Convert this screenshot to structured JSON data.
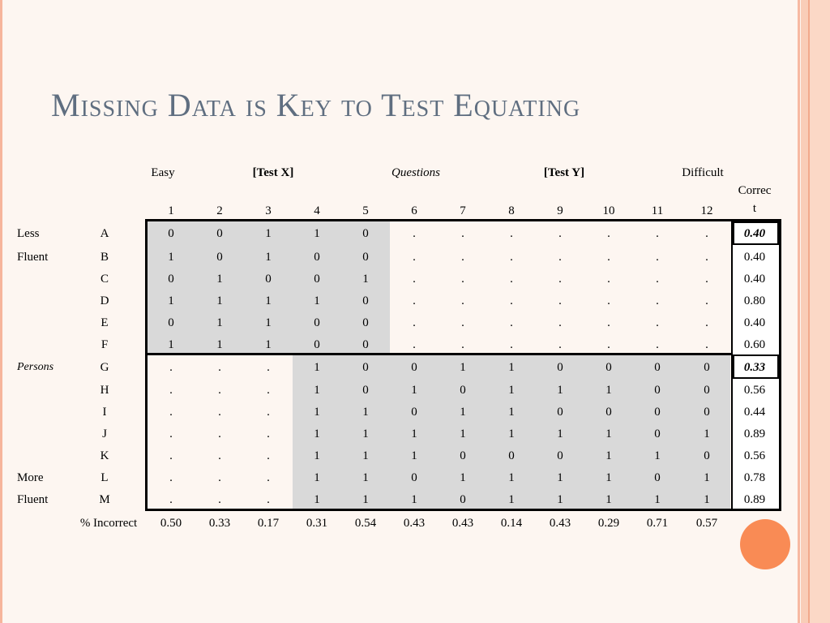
{
  "slide": {
    "title": "Missing Data is Key to Test Equating"
  },
  "header": {
    "easy": "Easy",
    "test_x": "[Test X]",
    "questions": "Questions",
    "test_y": "[Test Y]",
    "difficult": "Difficult",
    "correct_line1": "Correc",
    "correct_line2": "t"
  },
  "columns": [
    "1",
    "2",
    "3",
    "4",
    "5",
    "6",
    "7",
    "8",
    "9",
    "10",
    "11",
    "12"
  ],
  "side_labels": {
    "less": "Less",
    "fluent_top": "Fluent",
    "persons": "Persons",
    "more": "More",
    "fluent_bottom": "Fluent"
  },
  "rows": [
    {
      "id": "A",
      "cells": [
        "0",
        "0",
        "1",
        "1",
        "0",
        ".",
        ".",
        ".",
        ".",
        ".",
        ".",
        "."
      ],
      "correct": "0.40"
    },
    {
      "id": "B",
      "cells": [
        "1",
        "0",
        "1",
        "0",
        "0",
        ".",
        ".",
        ".",
        ".",
        ".",
        ".",
        "."
      ],
      "correct": "0.40"
    },
    {
      "id": "C",
      "cells": [
        "0",
        "1",
        "0",
        "0",
        "1",
        ".",
        ".",
        ".",
        ".",
        ".",
        ".",
        "."
      ],
      "correct": "0.40"
    },
    {
      "id": "D",
      "cells": [
        "1",
        "1",
        "1",
        "1",
        "0",
        ".",
        ".",
        ".",
        ".",
        ".",
        ".",
        "."
      ],
      "correct": "0.80"
    },
    {
      "id": "E",
      "cells": [
        "0",
        "1",
        "1",
        "0",
        "0",
        ".",
        ".",
        ".",
        ".",
        ".",
        ".",
        "."
      ],
      "correct": "0.40"
    },
    {
      "id": "F",
      "cells": [
        "1",
        "1",
        "1",
        "0",
        "0",
        ".",
        ".",
        ".",
        ".",
        ".",
        ".",
        "."
      ],
      "correct": "0.60"
    },
    {
      "id": "G",
      "cells": [
        ".",
        ".",
        ".",
        "1",
        "0",
        "0",
        "1",
        "1",
        "0",
        "0",
        "0",
        "0"
      ],
      "correct": "0.33"
    },
    {
      "id": "H",
      "cells": [
        ".",
        ".",
        ".",
        "1",
        "0",
        "1",
        "0",
        "1",
        "1",
        "1",
        "0",
        "0"
      ],
      "correct": "0.56"
    },
    {
      "id": "I",
      "cells": [
        ".",
        ".",
        ".",
        "1",
        "1",
        "0",
        "1",
        "1",
        "0",
        "0",
        "0",
        "0"
      ],
      "correct": "0.44"
    },
    {
      "id": "J",
      "cells": [
        ".",
        ".",
        ".",
        "1",
        "1",
        "1",
        "1",
        "1",
        "1",
        "1",
        "0",
        "1"
      ],
      "correct": "0.89"
    },
    {
      "id": "K",
      "cells": [
        ".",
        ".",
        ".",
        "1",
        "1",
        "1",
        "0",
        "0",
        "0",
        "1",
        "1",
        "0"
      ],
      "correct": "0.56"
    },
    {
      "id": "L",
      "cells": [
        ".",
        ".",
        ".",
        "1",
        "1",
        "0",
        "1",
        "1",
        "1",
        "1",
        "0",
        "1"
      ],
      "correct": "0.78"
    },
    {
      "id": "M",
      "cells": [
        ".",
        ".",
        ".",
        "1",
        "1",
        "1",
        "0",
        "1",
        "1",
        "1",
        "1",
        "1"
      ],
      "correct": "0.89"
    }
  ],
  "incorrect": {
    "label": "% Incorrect",
    "values": [
      "0.50",
      "0.33",
      "0.17",
      "0.31",
      "0.54",
      "0.43",
      "0.43",
      "0.14",
      "0.43",
      "0.29",
      "0.71",
      "0.57"
    ]
  },
  "theme": {
    "title_color": "#5f6e80",
    "shade_color": "#d9d9d9",
    "accent": "#f98b55",
    "background": "#fdf6f1"
  }
}
